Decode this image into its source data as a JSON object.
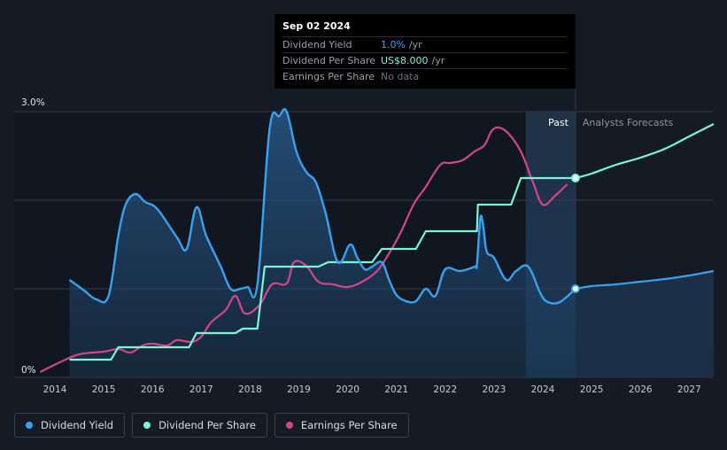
{
  "tooltip": {
    "date": "Sep 02 2024",
    "rows": [
      {
        "label": "Dividend Yield",
        "value": "1.0%",
        "unit": "/yr"
      },
      {
        "label": "Dividend Per Share",
        "value": "US$8.000",
        "unit": "/yr"
      },
      {
        "label": "Earnings Per Share",
        "value": "No data",
        "unit": ""
      }
    ]
  },
  "legend": [
    {
      "label": "Dividend Yield",
      "color": "#3aa0f0"
    },
    {
      "label": "Dividend Per Share",
      "color": "#7cf4d6"
    },
    {
      "label": "Earnings Per Share",
      "color": "#d0468a"
    }
  ],
  "colors": {
    "background": "#151b24",
    "yield": "#3aa0f0",
    "dps": "#7cf4d6",
    "eps": "#d0468a",
    "grid": "#343b45"
  },
  "chart_data": {
    "type": "line",
    "title": "",
    "xlabel": "",
    "ylabel": "",
    "x_ticks": [
      "2014",
      "2015",
      "2016",
      "2017",
      "2018",
      "2019",
      "2020",
      "2021",
      "2022",
      "2023",
      "2024",
      "2025",
      "2026",
      "2027"
    ],
    "y_ticks": [
      "0%",
      "3.0%"
    ],
    "xlim": [
      2013.7,
      2027.5
    ],
    "ylim": [
      0,
      3.0
    ],
    "past_label": "Past",
    "forecast_label": "Analysts Forecasts",
    "past_band": [
      2023.65,
      2024.67
    ],
    "forecast_start": 2024.67,
    "series": [
      {
        "name": "Dividend Yield",
        "unit": "%",
        "points": [
          [
            2014.3,
            1.1
          ],
          [
            2014.6,
            0.98
          ],
          [
            2014.85,
            0.88
          ],
          [
            2015.1,
            0.92
          ],
          [
            2015.3,
            1.6
          ],
          [
            2015.45,
            1.95
          ],
          [
            2015.65,
            2.07
          ],
          [
            2015.85,
            1.98
          ],
          [
            2016.1,
            1.9
          ],
          [
            2016.5,
            1.58
          ],
          [
            2016.7,
            1.45
          ],
          [
            2016.9,
            1.92
          ],
          [
            2017.1,
            1.6
          ],
          [
            2017.4,
            1.25
          ],
          [
            2017.6,
            1.0
          ],
          [
            2017.8,
            1.0
          ],
          [
            2017.95,
            1.02
          ],
          [
            2018.15,
            1.05
          ],
          [
            2018.4,
            2.8
          ],
          [
            2018.6,
            2.95
          ],
          [
            2018.75,
            3.0
          ],
          [
            2018.95,
            2.55
          ],
          [
            2019.15,
            2.32
          ],
          [
            2019.35,
            2.2
          ],
          [
            2019.55,
            1.85
          ],
          [
            2019.8,
            1.3
          ],
          [
            2020.05,
            1.5
          ],
          [
            2020.2,
            1.35
          ],
          [
            2020.35,
            1.22
          ],
          [
            2020.5,
            1.25
          ],
          [
            2020.7,
            1.3
          ],
          [
            2020.85,
            1.1
          ],
          [
            2021.0,
            0.93
          ],
          [
            2021.2,
            0.86
          ],
          [
            2021.4,
            0.86
          ],
          [
            2021.6,
            1.0
          ],
          [
            2021.8,
            0.92
          ],
          [
            2022.0,
            1.22
          ],
          [
            2022.3,
            1.2
          ],
          [
            2022.6,
            1.25
          ],
          [
            2022.65,
            1.28
          ],
          [
            2022.72,
            1.8
          ],
          [
            2022.78,
            1.7
          ],
          [
            2022.85,
            1.42
          ],
          [
            2023.0,
            1.35
          ],
          [
            2023.25,
            1.1
          ],
          [
            2023.45,
            1.2
          ],
          [
            2023.7,
            1.25
          ],
          [
            2023.95,
            0.95
          ],
          [
            2024.1,
            0.85
          ],
          [
            2024.35,
            0.85
          ],
          [
            2024.67,
            1.0
          ]
        ],
        "forecast": [
          [
            2024.67,
            1.0
          ],
          [
            2025.0,
            1.03
          ],
          [
            2025.5,
            1.05
          ],
          [
            2026.0,
            1.08
          ],
          [
            2026.5,
            1.11
          ],
          [
            2027.0,
            1.15
          ],
          [
            2027.5,
            1.2
          ]
        ]
      },
      {
        "name": "Dividend Per Share",
        "step": true,
        "points": [
          [
            2014.3,
            0.2
          ],
          [
            2015.15,
            0.2
          ],
          [
            2015.3,
            0.34
          ],
          [
            2015.8,
            0.34
          ],
          [
            2016.75,
            0.34
          ],
          [
            2016.9,
            0.5
          ],
          [
            2017.7,
            0.5
          ],
          [
            2017.85,
            0.55
          ],
          [
            2018.15,
            0.55
          ],
          [
            2018.3,
            1.25
          ],
          [
            2019.4,
            1.25
          ],
          [
            2019.6,
            1.3
          ],
          [
            2020.5,
            1.3
          ],
          [
            2020.7,
            1.45
          ],
          [
            2021.4,
            1.45
          ],
          [
            2021.6,
            1.65
          ],
          [
            2022.65,
            1.65
          ],
          [
            2022.67,
            1.95
          ],
          [
            2023.35,
            1.95
          ],
          [
            2023.55,
            2.25
          ],
          [
            2024.67,
            2.25
          ]
        ],
        "forecast": [
          [
            2024.67,
            2.25
          ],
          [
            2025.0,
            2.3
          ],
          [
            2025.5,
            2.4
          ],
          [
            2026.0,
            2.48
          ],
          [
            2026.5,
            2.58
          ],
          [
            2027.0,
            2.72
          ],
          [
            2027.5,
            2.86
          ]
        ]
      },
      {
        "name": "Earnings Per Share",
        "points": [
          [
            2013.7,
            0.06
          ],
          [
            2014.1,
            0.17
          ],
          [
            2014.5,
            0.26
          ],
          [
            2015.0,
            0.29
          ],
          [
            2015.3,
            0.32
          ],
          [
            2015.55,
            0.28
          ],
          [
            2015.8,
            0.36
          ],
          [
            2016.0,
            0.38
          ],
          [
            2016.3,
            0.36
          ],
          [
            2016.5,
            0.42
          ],
          [
            2016.8,
            0.4
          ],
          [
            2017.0,
            0.46
          ],
          [
            2017.2,
            0.62
          ],
          [
            2017.5,
            0.76
          ],
          [
            2017.7,
            0.92
          ],
          [
            2017.9,
            0.72
          ],
          [
            2018.2,
            0.82
          ],
          [
            2018.45,
            1.05
          ],
          [
            2018.75,
            1.06
          ],
          [
            2018.9,
            1.3
          ],
          [
            2019.15,
            1.26
          ],
          [
            2019.4,
            1.08
          ],
          [
            2019.7,
            1.05
          ],
          [
            2020.0,
            1.02
          ],
          [
            2020.3,
            1.08
          ],
          [
            2020.6,
            1.2
          ],
          [
            2020.85,
            1.4
          ],
          [
            2021.1,
            1.65
          ],
          [
            2021.35,
            1.95
          ],
          [
            2021.6,
            2.15
          ],
          [
            2021.9,
            2.4
          ],
          [
            2022.1,
            2.42
          ],
          [
            2022.35,
            2.45
          ],
          [
            2022.6,
            2.55
          ],
          [
            2022.8,
            2.62
          ],
          [
            2022.95,
            2.78
          ],
          [
            2023.1,
            2.82
          ],
          [
            2023.3,
            2.75
          ],
          [
            2023.55,
            2.55
          ],
          [
            2023.8,
            2.2
          ],
          [
            2024.0,
            1.95
          ],
          [
            2024.25,
            2.05
          ],
          [
            2024.5,
            2.18
          ]
        ]
      }
    ]
  }
}
